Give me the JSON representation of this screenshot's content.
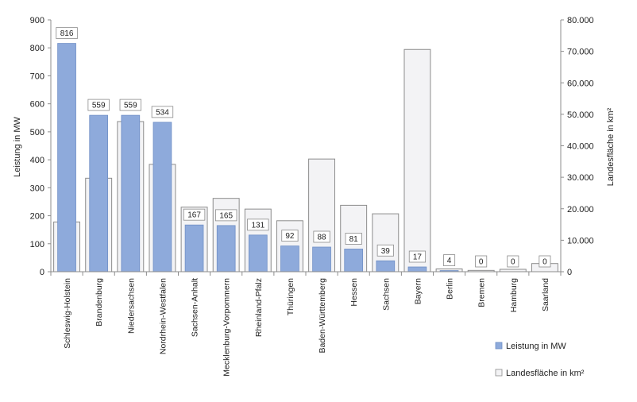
{
  "chart_data": {
    "type": "bar",
    "categories": [
      "Schleswig-Holstein",
      "Brandenburg",
      "Niedersachsen",
      "Nordrhein-Westfalen",
      "Sachsen-Anhalt",
      "Mecklenburg-Vorpommern",
      "Rheinland-Pfalz",
      "Thüringen",
      "Baden-Württemberg",
      "Hessen",
      "Sachsen",
      "Bayern",
      "Berlin",
      "Bremen",
      "Hamburg",
      "Saarland"
    ],
    "series": [
      {
        "name": "Leistung in MW",
        "axis": "left",
        "color": "#8eaadb",
        "stroke": "#6f8fc6",
        "values": [
          816,
          559,
          559,
          534,
          167,
          165,
          131,
          92,
          88,
          81,
          39,
          17,
          4,
          0,
          0,
          0
        ],
        "data_labels": [
          "816",
          "559",
          "559",
          "534",
          "167",
          "165",
          "131",
          "92",
          "88",
          "81",
          "39",
          "17",
          "4",
          "0",
          "0",
          "0"
        ]
      },
      {
        "name": "Landesfläche in km²",
        "axis": "right",
        "color": "#f3f3f5",
        "stroke": "#8c8c8c",
        "values": [
          15800,
          29700,
          47700,
          34100,
          20500,
          23300,
          19900,
          16200,
          35800,
          21100,
          18400,
          70600,
          890,
          420,
          760,
          2600
        ]
      }
    ],
    "ylabel_left": "Leistung in MW",
    "ylabel_right": "Landesfläche in km²",
    "ylim_left": [
      0,
      900
    ],
    "ylim_right": [
      0,
      80000
    ],
    "yticks_left": [
      "0",
      "100",
      "200",
      "300",
      "400",
      "500",
      "600",
      "700",
      "800",
      "900"
    ],
    "yticks_right": [
      "0",
      "10.000",
      "20.000",
      "30.000",
      "40.000",
      "50.000",
      "60.000",
      "70.000",
      "80.000"
    ],
    "grid": false,
    "legend_position": "bottom-right"
  }
}
